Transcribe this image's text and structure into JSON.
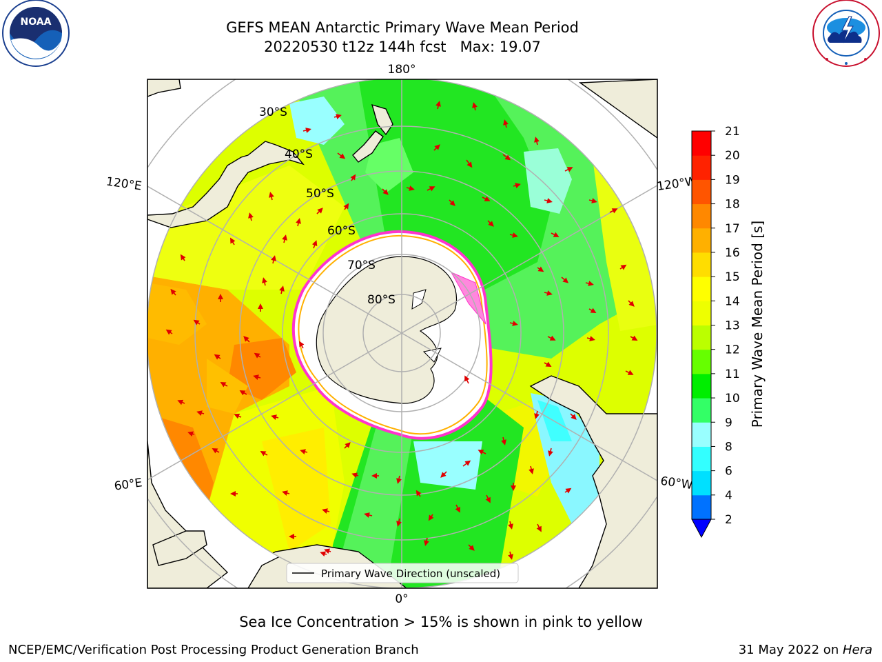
{
  "header": {
    "title_line1": "GEFS MEAN Antarctic Primary Wave Mean Period",
    "title_line2": "20220530 t12z 144h fcst   Max: 19.07"
  },
  "logos": {
    "left": {
      "text": "NOAA",
      "ring_text": "NATIONAL OCEANIC AND ATMOSPHERIC ADMINISTRATION · U.S. DEPARTMENT OF COMMERCE"
    },
    "right": {
      "ring_text": "NATIONAL WEATHER SERVICE"
    }
  },
  "map": {
    "projection": "south polar stereographic",
    "longitude_labels": [
      "180°",
      "120°E",
      "120°W",
      "60°E",
      "60°W",
      "0°"
    ],
    "latitude_labels": [
      "30°S",
      "40°S",
      "50°S",
      "60°S",
      "70°S",
      "80°S"
    ],
    "legend_label": "Primary Wave Direction (unscaled)"
  },
  "colorbar": {
    "label": "Primary Wave Mean Period [s]",
    "ticks": [
      "2",
      "4",
      "6",
      "8",
      "9",
      "10",
      "11",
      "12",
      "13",
      "14",
      "15",
      "16",
      "17",
      "18",
      "19",
      "20",
      "21"
    ],
    "colors": [
      "#0072ff",
      "#00e0ff",
      "#33ffff",
      "#99ffff",
      "#33ff66",
      "#00ee00",
      "#66ff00",
      "#bbff00",
      "#eeff00",
      "#ffff00",
      "#ffdd00",
      "#ffb000",
      "#ff8800",
      "#ff5500",
      "#ff2200",
      "#ff0000"
    ],
    "extend_color": "#0000ff"
  },
  "captions": {
    "sea_ice_note": "Sea Ice Concentration > 15% is shown in pink to yellow",
    "credit": "NCEP/EMC/Verification Post Processing Product Generation Branch",
    "date": "31 May 2022 on ",
    "host": "Hera"
  }
}
